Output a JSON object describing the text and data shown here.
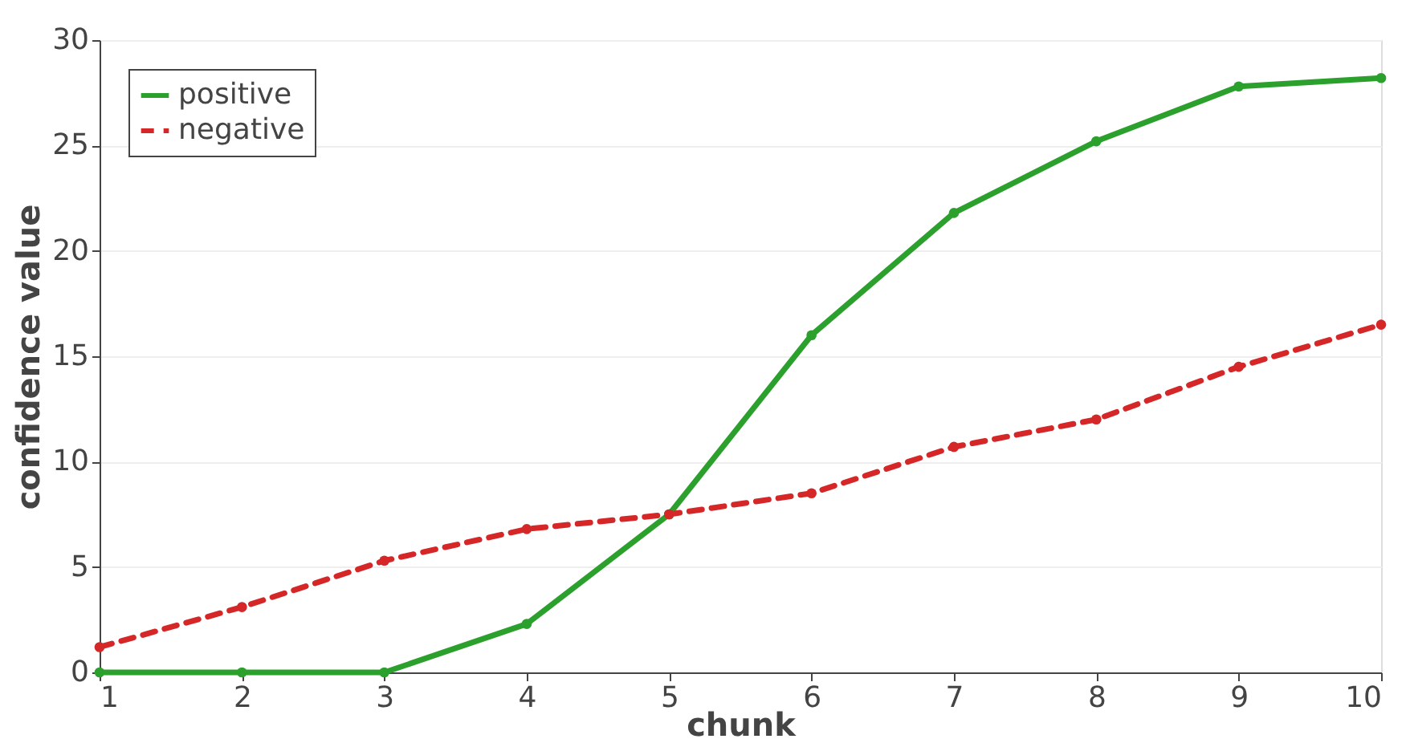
{
  "chart_data": {
    "type": "line",
    "xlabel": "chunk",
    "ylabel": "confidence value",
    "x": [
      1,
      2,
      3,
      4,
      5,
      6,
      7,
      8,
      9,
      10
    ],
    "series": [
      {
        "name": "positive",
        "color": "#2ca02c",
        "line_style": "solid",
        "values": [
          0,
          0,
          0,
          2.3,
          7.5,
          16.0,
          21.8,
          25.2,
          27.8,
          28.2
        ]
      },
      {
        "name": "negative",
        "color": "#d62728",
        "line_style": "dashed",
        "values": [
          1.2,
          3.1,
          5.3,
          6.8,
          7.5,
          8.5,
          10.7,
          12.0,
          14.5,
          16.5
        ]
      }
    ],
    "xlim": [
      1,
      10
    ],
    "xticks": [
      1,
      2,
      3,
      4,
      5,
      6,
      7,
      8,
      9,
      10
    ],
    "ylim": [
      0,
      30
    ],
    "yticks": [
      0,
      5,
      10,
      15,
      20,
      25,
      30
    ],
    "grid": "y",
    "legend": "top left",
    "marker": "circle"
  }
}
